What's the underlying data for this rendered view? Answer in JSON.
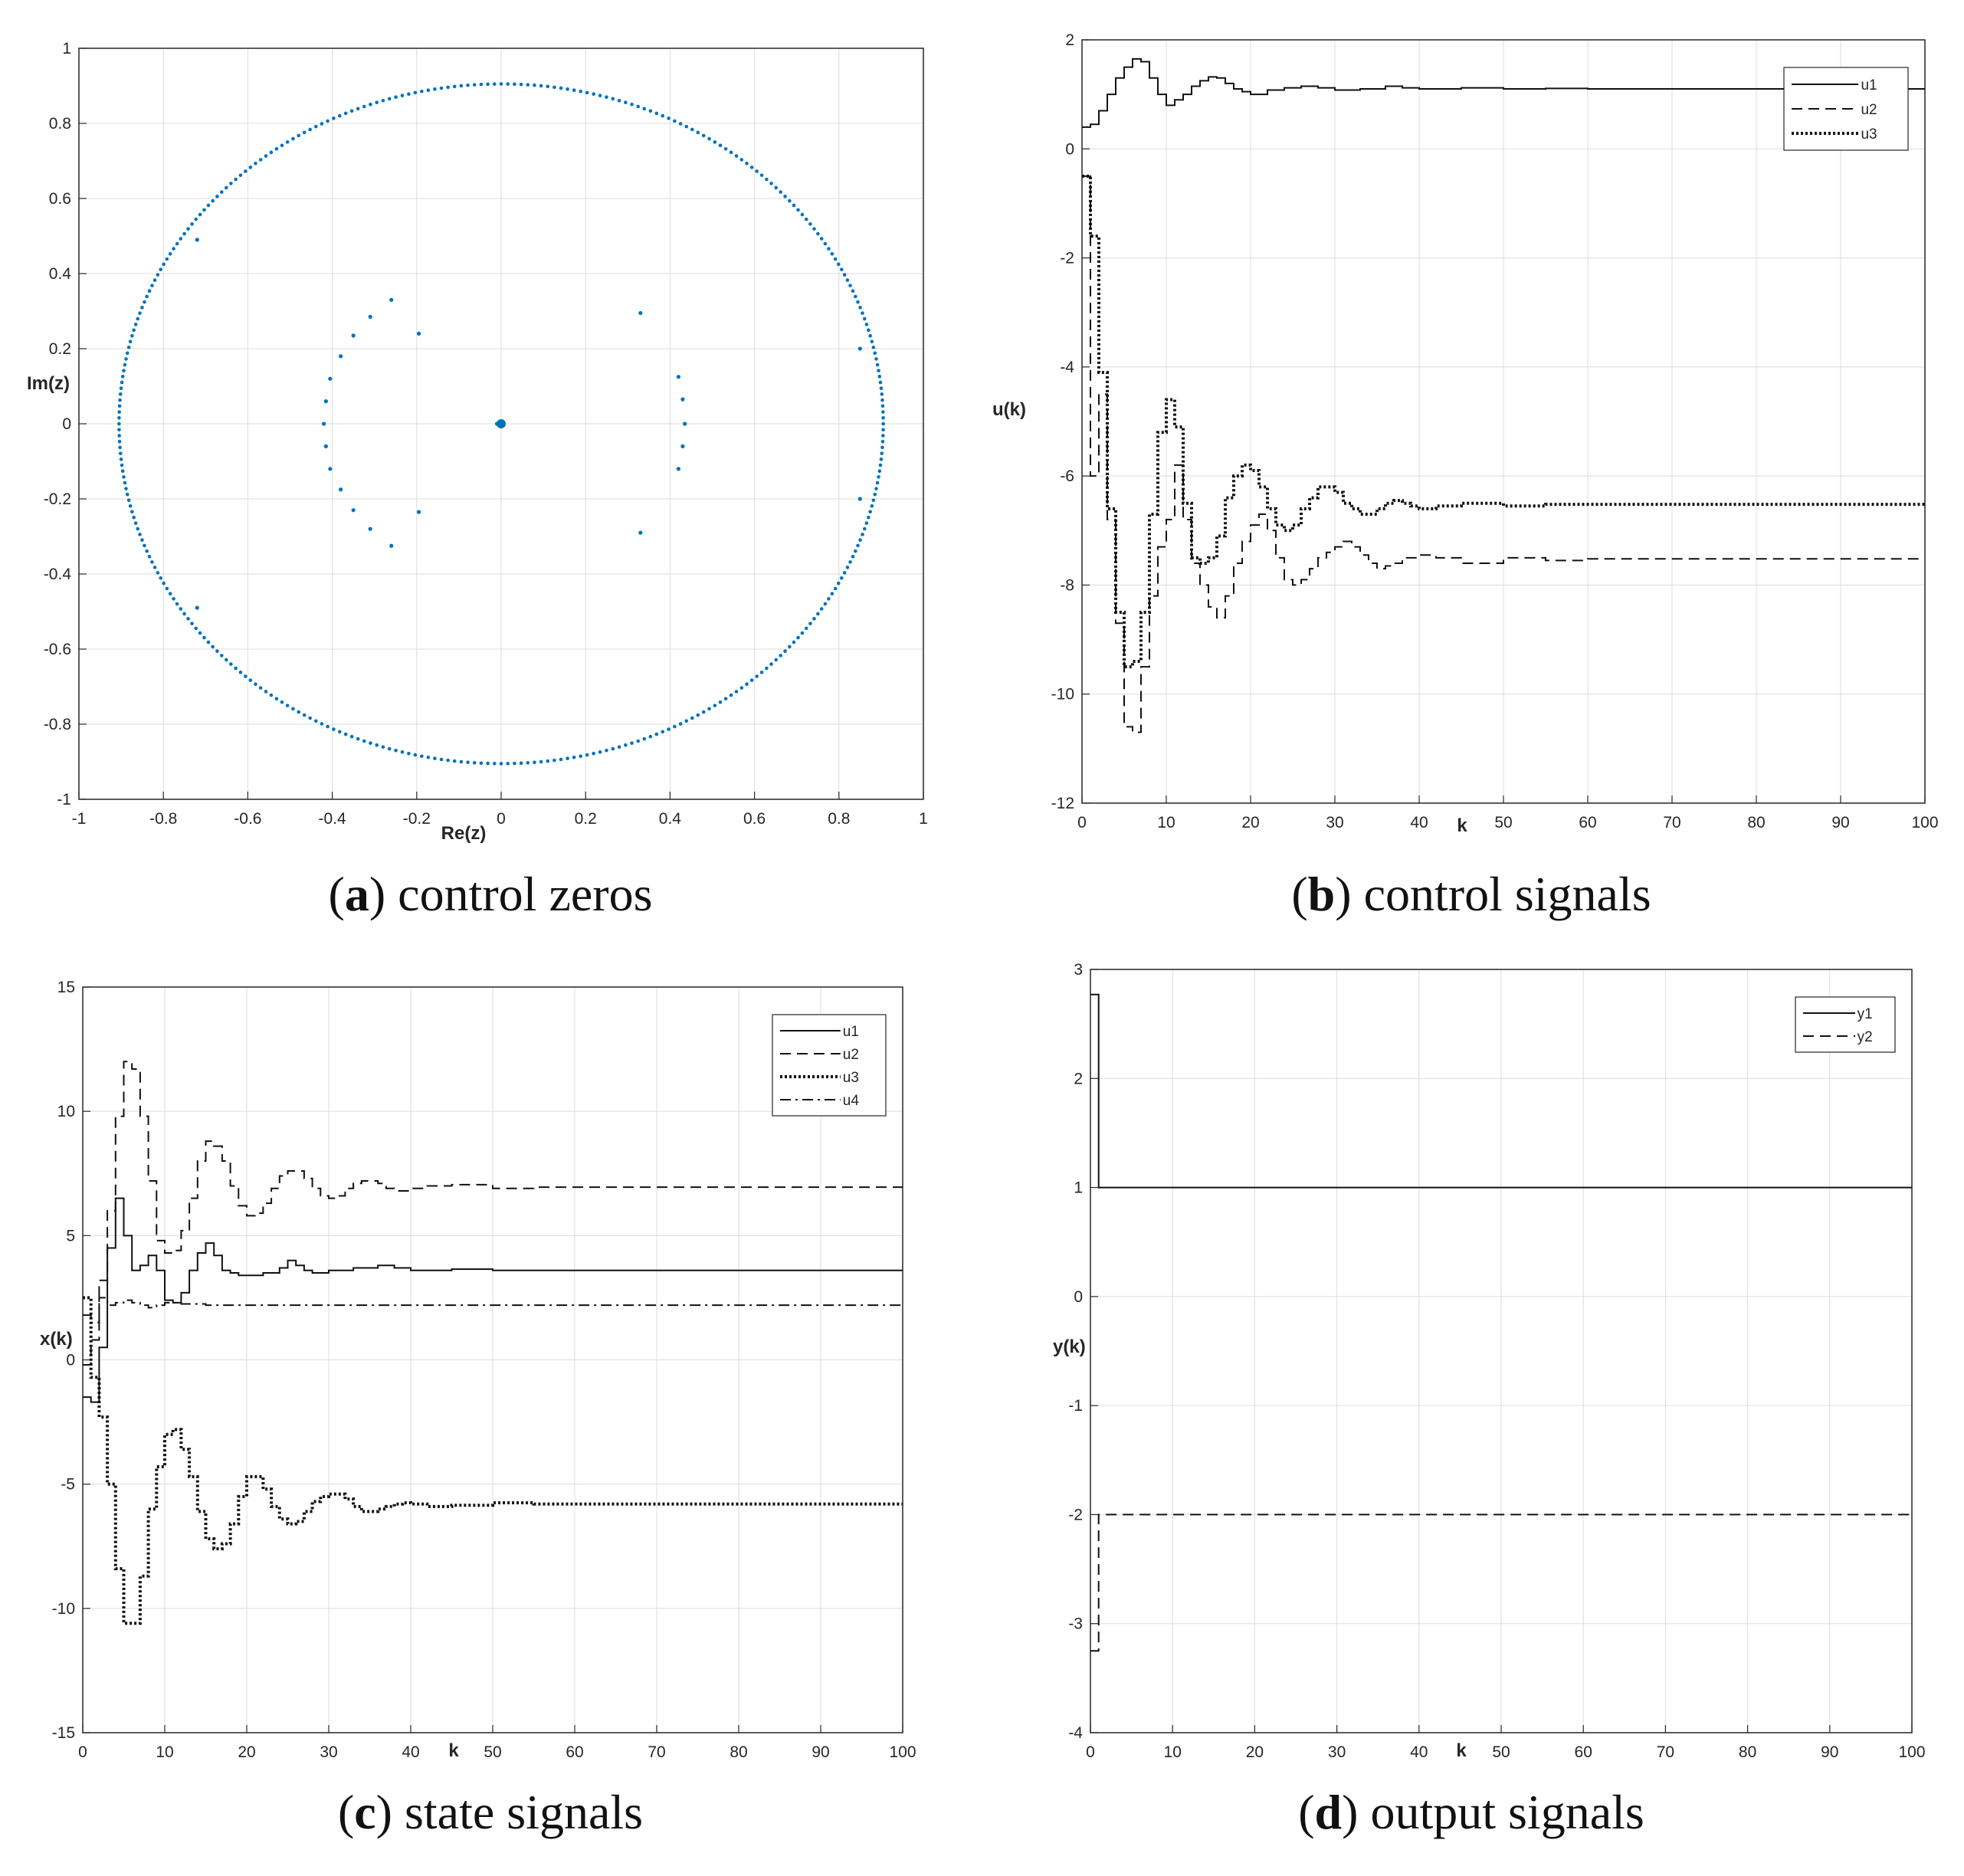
{
  "chart_data": [
    {
      "id": "a",
      "type": "scatter",
      "caption_letter": "a",
      "caption_text": "control zeros",
      "xlabel": "Re(z)",
      "ylabel": "Im(z)",
      "xlim": [
        -1,
        1
      ],
      "ylim": [
        -1,
        1
      ],
      "xticks": [
        -1,
        -0.8,
        -0.6,
        -0.4,
        -0.2,
        0,
        0.2,
        0.4,
        0.6,
        0.8,
        1
      ],
      "yticks": [
        -1,
        -0.8,
        -0.6,
        -0.4,
        -0.2,
        0,
        0.2,
        0.4,
        0.6,
        0.8,
        1
      ],
      "xtick_labels": [
        "-1",
        "-0.8",
        "-0.6",
        "-0.4",
        "-0.2",
        "0",
        "0.2",
        "0.4",
        "0.6",
        "0.8",
        "1"
      ],
      "ytick_labels": [
        "-1",
        "-0.8",
        "-0.6",
        "-0.4",
        "-0.2",
        "0",
        "0.2",
        "0.4",
        "0.6",
        "0.8",
        "1"
      ],
      "grid": true,
      "color": "#0072BD",
      "circle_radius": 0.905,
      "circle_points": 360,
      "points": [
        [
          -0.72,
          0.49
        ],
        [
          -0.72,
          -0.49
        ],
        [
          0.85,
          0.2
        ],
        [
          0.85,
          -0.2
        ],
        [
          -0.26,
          0.33
        ],
        [
          -0.31,
          0.285
        ],
        [
          -0.35,
          0.235
        ],
        [
          -0.38,
          0.18
        ],
        [
          -0.405,
          0.12
        ],
        [
          -0.415,
          0.06
        ],
        [
          -0.42,
          0.0
        ],
        [
          -0.415,
          -0.06
        ],
        [
          -0.405,
          -0.12
        ],
        [
          -0.38,
          -0.175
        ],
        [
          -0.35,
          -0.23
        ],
        [
          -0.31,
          -0.28
        ],
        [
          -0.26,
          -0.325
        ],
        [
          -0.195,
          0.24
        ],
        [
          -0.195,
          -0.235
        ],
        [
          0.33,
          0.295
        ],
        [
          0.33,
          -0.29
        ],
        [
          0.42,
          0.125
        ],
        [
          0.43,
          0.065
        ],
        [
          0.435,
          0.0
        ],
        [
          0.43,
          -0.06
        ],
        [
          0.42,
          -0.12
        ],
        [
          -0.01,
          0.0
        ]
      ],
      "origin_marker": [
        0,
        0
      ]
    },
    {
      "id": "b",
      "type": "line",
      "caption_letter": "b",
      "caption_text": "control signals",
      "xlabel": "k",
      "ylabel": "u(k)",
      "xlim": [
        0,
        100
      ],
      "ylim": [
        -12,
        2
      ],
      "xticks": [
        0,
        10,
        20,
        30,
        40,
        50,
        60,
        70,
        80,
        90,
        100
      ],
      "yticks": [
        -12,
        -10,
        -8,
        -6,
        -4,
        -2,
        0,
        2
      ],
      "xtick_labels": [
        "0",
        "10",
        "20",
        "30",
        "40",
        "50",
        "60",
        "70",
        "80",
        "90",
        "100"
      ],
      "ytick_labels": [
        "-12",
        "-10",
        "-8",
        "-6",
        "-4",
        "-2",
        "0",
        "2"
      ],
      "grid": true,
      "legend_position": "top-right",
      "series": [
        {
          "name": "u1",
          "style": "solid",
          "x": [
            0,
            1,
            2,
            3,
            4,
            5,
            6,
            7,
            8,
            9,
            10,
            11,
            12,
            13,
            14,
            15,
            16,
            17,
            18,
            19,
            20,
            22,
            24,
            26,
            28,
            30,
            33,
            36,
            38,
            40,
            45,
            50,
            55,
            60,
            100
          ],
          "values": [
            0.4,
            0.45,
            0.7,
            1.0,
            1.3,
            1.5,
            1.65,
            1.6,
            1.3,
            1.0,
            0.8,
            0.9,
            1.0,
            1.15,
            1.25,
            1.32,
            1.3,
            1.2,
            1.1,
            1.05,
            1.0,
            1.08,
            1.12,
            1.15,
            1.12,
            1.08,
            1.1,
            1.15,
            1.12,
            1.1,
            1.12,
            1.1,
            1.11,
            1.1,
            1.1
          ]
        },
        {
          "name": "u2",
          "style": "dashed",
          "x": [
            0,
            1,
            2,
            3,
            4,
            5,
            6,
            7,
            8,
            9,
            10,
            11,
            12,
            13,
            14,
            15,
            16,
            17,
            18,
            19,
            20,
            21,
            22,
            23,
            24,
            25,
            26,
            27,
            28,
            29,
            30,
            31,
            32,
            33,
            34,
            35,
            36,
            37,
            38,
            40,
            42,
            45,
            50,
            55,
            60,
            70,
            100
          ],
          "values": [
            -0.5,
            -6.0,
            -4.5,
            -6.8,
            -8.7,
            -10.6,
            -10.7,
            -9.5,
            -8.2,
            -7.3,
            -6.8,
            -5.8,
            -6.8,
            -7.6,
            -8.0,
            -8.4,
            -8.6,
            -8.2,
            -7.6,
            -7.2,
            -6.9,
            -6.7,
            -7.0,
            -7.5,
            -7.9,
            -8.0,
            -7.9,
            -7.7,
            -7.5,
            -7.4,
            -7.3,
            -7.2,
            -7.3,
            -7.45,
            -7.6,
            -7.7,
            -7.65,
            -7.6,
            -7.5,
            -7.45,
            -7.5,
            -7.6,
            -7.5,
            -7.55,
            -7.52,
            -7.52,
            -7.52
          ]
        },
        {
          "name": "u3",
          "style": "dotted",
          "x": [
            0,
            1,
            2,
            3,
            4,
            5,
            6,
            7,
            8,
            9,
            10,
            11,
            12,
            13,
            14,
            15,
            16,
            17,
            18,
            19,
            20,
            21,
            22,
            23,
            24,
            25,
            26,
            27,
            28,
            29,
            30,
            31,
            32,
            33,
            34,
            35,
            36,
            37,
            38,
            39,
            40,
            42,
            45,
            50,
            55,
            60,
            100
          ],
          "values": [
            -0.5,
            -1.6,
            -4.1,
            -6.6,
            -8.5,
            -9.5,
            -9.4,
            -8.5,
            -6.7,
            -5.2,
            -4.6,
            -5.1,
            -6.5,
            -7.5,
            -7.6,
            -7.5,
            -7.1,
            -6.4,
            -6.0,
            -5.8,
            -5.9,
            -6.2,
            -6.6,
            -6.9,
            -7.0,
            -6.9,
            -6.6,
            -6.4,
            -6.2,
            -6.2,
            -6.3,
            -6.5,
            -6.6,
            -6.7,
            -6.7,
            -6.6,
            -6.5,
            -6.45,
            -6.5,
            -6.55,
            -6.6,
            -6.55,
            -6.5,
            -6.55,
            -6.52,
            -6.52,
            -6.52
          ]
        }
      ]
    },
    {
      "id": "c",
      "type": "line",
      "caption_letter": "c",
      "caption_text": "state signals",
      "xlabel": "k",
      "ylabel": "x(k)",
      "xlim": [
        0,
        100
      ],
      "ylim": [
        -15,
        15
      ],
      "xticks": [
        0,
        10,
        20,
        30,
        40,
        50,
        60,
        70,
        80,
        90,
        100
      ],
      "yticks": [
        -15,
        -10,
        -5,
        0,
        5,
        10,
        15
      ],
      "xtick_labels": [
        "0",
        "10",
        "20",
        "30",
        "40",
        "50",
        "60",
        "70",
        "80",
        "90",
        "100"
      ],
      "ytick_labels": [
        "-15",
        "-10",
        "-5",
        "0",
        "5",
        "10",
        "15"
      ],
      "grid": true,
      "legend_position": "top-right",
      "series": [
        {
          "name": "u1",
          "style": "solid",
          "x": [
            0,
            1,
            2,
            3,
            4,
            5,
            6,
            7,
            8,
            9,
            10,
            11,
            12,
            13,
            14,
            15,
            16,
            17,
            18,
            19,
            20,
            22,
            24,
            25,
            26,
            27,
            28,
            30,
            33,
            36,
            38,
            40,
            45,
            50,
            60,
            100
          ],
          "values": [
            -1.5,
            -1.7,
            0.5,
            4.5,
            6.5,
            5.0,
            3.6,
            3.8,
            4.2,
            3.6,
            2.4,
            2.3,
            2.7,
            3.6,
            4.3,
            4.7,
            4.2,
            3.6,
            3.5,
            3.4,
            3.4,
            3.5,
            3.7,
            4.0,
            3.8,
            3.6,
            3.5,
            3.6,
            3.7,
            3.8,
            3.7,
            3.6,
            3.65,
            3.6,
            3.6,
            3.6
          ]
        },
        {
          "name": "u2",
          "style": "dashed",
          "x": [
            0,
            1,
            2,
            3,
            4,
            5,
            6,
            7,
            8,
            9,
            10,
            11,
            12,
            13,
            14,
            15,
            16,
            17,
            18,
            19,
            20,
            21,
            22,
            23,
            24,
            25,
            26,
            27,
            28,
            29,
            30,
            31,
            32,
            33,
            34,
            35,
            36,
            37,
            38,
            39,
            40,
            42,
            45,
            50,
            55,
            60,
            100
          ],
          "values": [
            -0.2,
            0.8,
            3.2,
            6.0,
            9.8,
            12.0,
            11.7,
            9.8,
            7.2,
            4.8,
            4.3,
            4.4,
            5.2,
            6.5,
            8.0,
            8.8,
            8.6,
            8.0,
            7.0,
            6.2,
            5.8,
            5.9,
            6.3,
            6.9,
            7.4,
            7.6,
            7.6,
            7.3,
            6.9,
            6.6,
            6.5,
            6.6,
            6.9,
            7.1,
            7.2,
            7.2,
            7.1,
            6.9,
            6.8,
            6.8,
            6.9,
            7.0,
            7.05,
            6.9,
            6.95,
            6.95,
            6.95
          ]
        },
        {
          "name": "u3",
          "style": "dotted",
          "x": [
            0,
            1,
            2,
            3,
            4,
            5,
            6,
            7,
            8,
            9,
            10,
            11,
            12,
            13,
            14,
            15,
            16,
            17,
            18,
            19,
            20,
            21,
            22,
            23,
            24,
            25,
            26,
            27,
            28,
            29,
            30,
            31,
            32,
            33,
            34,
            35,
            36,
            37,
            38,
            39,
            40,
            42,
            45,
            50,
            55,
            60,
            100
          ],
          "values": [
            2.5,
            -0.7,
            -2.3,
            -5.0,
            -8.4,
            -10.6,
            -10.6,
            -8.7,
            -6.0,
            -4.3,
            -3.0,
            -2.8,
            -3.6,
            -4.7,
            -6.1,
            -7.2,
            -7.6,
            -7.4,
            -6.6,
            -5.5,
            -4.7,
            -4.7,
            -5.2,
            -5.9,
            -6.4,
            -6.6,
            -6.5,
            -6.1,
            -5.7,
            -5.5,
            -5.4,
            -5.4,
            -5.6,
            -5.9,
            -6.1,
            -6.1,
            -6.0,
            -5.9,
            -5.8,
            -5.75,
            -5.8,
            -5.9,
            -5.85,
            -5.75,
            -5.8,
            -5.8,
            -5.8
          ]
        },
        {
          "name": "u4",
          "style": "dashdot",
          "x": [
            0,
            1,
            2,
            3,
            4,
            5,
            6,
            7,
            8,
            9,
            10,
            12,
            15,
            20,
            30,
            40,
            50,
            100
          ],
          "values": [
            1.8,
            1.5,
            2.5,
            2.2,
            2.3,
            2.4,
            2.3,
            2.2,
            2.1,
            2.2,
            2.3,
            2.25,
            2.2,
            2.2,
            2.2,
            2.2,
            2.2,
            2.2
          ]
        }
      ]
    },
    {
      "id": "d",
      "type": "line",
      "caption_letter": "d",
      "caption_text": "output signals",
      "xlabel": "k",
      "ylabel": "y(k)",
      "xlim": [
        0,
        100
      ],
      "ylim": [
        -4,
        3
      ],
      "xticks": [
        0,
        10,
        20,
        30,
        40,
        50,
        60,
        70,
        80,
        90,
        100
      ],
      "yticks": [
        -4,
        -3,
        -2,
        -1,
        0,
        1,
        2,
        3
      ],
      "xtick_labels": [
        "0",
        "10",
        "20",
        "30",
        "40",
        "50",
        "60",
        "70",
        "80",
        "90",
        "100"
      ],
      "ytick_labels": [
        "-4",
        "-3",
        "-2",
        "-1",
        "0",
        "1",
        "2",
        "3"
      ],
      "grid": true,
      "legend_position": "top-right",
      "series": [
        {
          "name": "y1",
          "style": "solid",
          "x": [
            0,
            1,
            100
          ],
          "values": [
            2.77,
            1.0,
            1.0
          ]
        },
        {
          "name": "y2",
          "style": "dashed",
          "x": [
            0,
            1,
            100
          ],
          "values": [
            -3.25,
            -2.0,
            -2.0
          ]
        }
      ]
    }
  ]
}
